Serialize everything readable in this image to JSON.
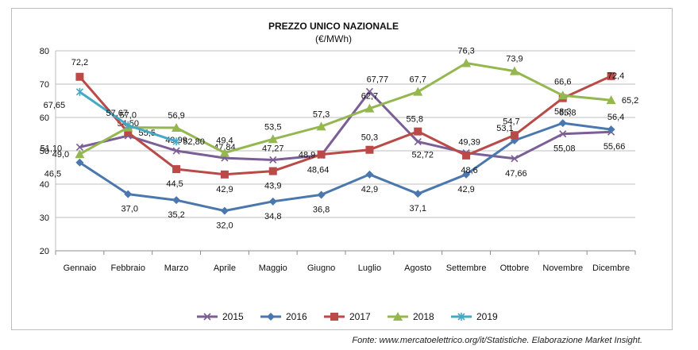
{
  "chart_data": {
    "type": "line",
    "title": "PREZZO UNICO NAZIONALE",
    "subtitle": "(€/MWh)",
    "xlabel": "",
    "ylabel": "",
    "categories": [
      "Gennaio",
      "Febbraio",
      "Marzo",
      "Aprile",
      "Maggio",
      "Giugno",
      "Luglio",
      "Agosto",
      "Settembre",
      "Ottobre",
      "Novembre",
      "Dicembre"
    ],
    "ylim": [
      20,
      80
    ],
    "yticks": [
      "20",
      "30",
      "40",
      "50",
      "60",
      "70",
      "80"
    ],
    "grid": true,
    "legend_position": "bottom",
    "series": [
      {
        "name": "2015",
        "color": "#7b5e96",
        "marker": "x",
        "values": [
          51.1,
          54.5,
          49.99,
          47.84,
          47.27,
          48.64,
          67.77,
          52.72,
          49.39,
          47.66,
          55.08,
          55.66
        ],
        "labels": [
          "51,10",
          "54,50",
          "49,99",
          "47,84",
          "47,27",
          "48,64",
          "67,77",
          "52,72",
          "49,39",
          "47,66",
          "55,08",
          "55,66"
        ]
      },
      {
        "name": "2016",
        "color": "#4a78ae",
        "marker": "diamond",
        "values": [
          46.5,
          37.0,
          35.2,
          32.0,
          34.8,
          36.8,
          42.9,
          37.1,
          42.9,
          53.1,
          58.3,
          56.4
        ],
        "labels": [
          "46,5",
          "37,0",
          "35,2",
          "32,0",
          "34,8",
          "36,8",
          "42,9",
          "37,1",
          "42,9",
          "53,1",
          "58,3",
          "56,4"
        ]
      },
      {
        "name": "2017",
        "color": "#b94a47",
        "marker": "square",
        "values": [
          72.2,
          55.5,
          44.5,
          42.9,
          43.9,
          48.9,
          50.3,
          55.8,
          48.6,
          54.7,
          65.8,
          72.4
        ],
        "labels": [
          "72,2",
          "55,5",
          "44,5",
          "42,9",
          "43,9",
          "48,9",
          "50,3",
          "55,8",
          "48,6",
          "54,7",
          "65,8",
          "72,4"
        ]
      },
      {
        "name": "2018",
        "color": "#95b750",
        "marker": "triangle",
        "values": [
          49.0,
          57.0,
          56.9,
          49.4,
          53.5,
          57.3,
          62.7,
          67.7,
          76.3,
          73.9,
          66.6,
          65.2
        ],
        "labels": [
          "49,0",
          "57,0",
          "56,9",
          "49,4",
          "53,5",
          "57,3",
          "62,7",
          "67,7",
          "76,3",
          "73,9",
          "66,6",
          "65,2"
        ]
      },
      {
        "name": "2019",
        "color": "#46a8c4",
        "marker": "star",
        "values": [
          67.65,
          57.67,
          52.8,
          null,
          null,
          null,
          null,
          null,
          null,
          null,
          null,
          null
        ],
        "labels": [
          "67,65",
          "57,67",
          "52,80"
        ]
      }
    ]
  },
  "source": "Fonte: www.mercatoelettrico.org/it/Statistiche. Elaborazione Market Insight."
}
